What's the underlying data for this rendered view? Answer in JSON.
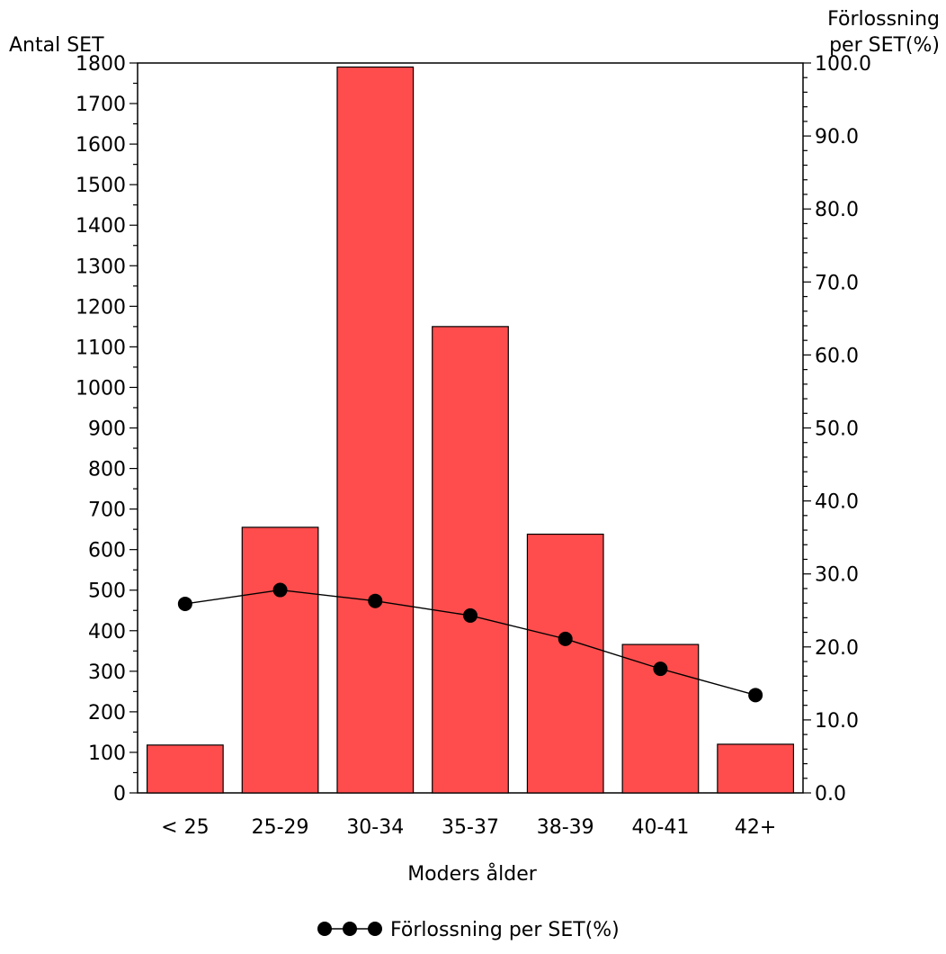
{
  "chart_data": {
    "type": "bar",
    "xlabel": "Moders ålder",
    "ylabel_left": "Antal SET",
    "ylabel_right": [
      "Förlossning",
      "per SET(%)"
    ],
    "categories": [
      "< 25",
      "25-29",
      "30-34",
      "35-37",
      "38-39",
      "40-41",
      "42+"
    ],
    "bar_values": [
      118,
      655,
      1790,
      1150,
      638,
      366,
      120
    ],
    "line_series": {
      "name": "Förlossning per SET(%)",
      "values": [
        25.9,
        27.8,
        26.3,
        24.3,
        21.1,
        17.0,
        13.4
      ]
    },
    "ylim_left": [
      0,
      1800
    ],
    "yticks_left": [
      "0",
      "100",
      "200",
      "300",
      "400",
      "500",
      "600",
      "700",
      "800",
      "900",
      "1000",
      "1100",
      "1200",
      "1300",
      "1400",
      "1500",
      "1600",
      "1700",
      "1800"
    ],
    "ylim_right": [
      0,
      100
    ],
    "yticks_right": [
      "0.0",
      "10.0",
      "20.0",
      "30.0",
      "40.0",
      "50.0",
      "60.0",
      "70.0",
      "80.0",
      "90.0",
      "100.0"
    ],
    "grid": false,
    "legend_position": "bottom",
    "bar_color": "#ff4d4d",
    "line_color": "#000000"
  }
}
